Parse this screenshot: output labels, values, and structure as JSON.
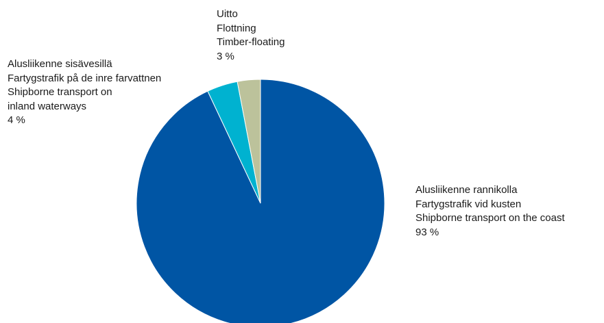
{
  "chart_data": {
    "type": "pie",
    "title": "",
    "start_angle_deg": 0,
    "direction": "clockwise",
    "slices": [
      {
        "lines": [
          "Alusliikenne rannikolla",
          "Fartygstrafik vid kusten",
          "Shipborne transport on the coast"
        ],
        "value": 93,
        "value_label": "93 %",
        "color": "#0055a4"
      },
      {
        "lines": [
          "Alusliikenne sisävesillä",
          "Fartygstrafik på de inre farvattnen",
          "Shipborne transport on",
          "inland waterways"
        ],
        "value": 4,
        "value_label": "4 %",
        "color": "#00b2d0"
      },
      {
        "lines": [
          "Uitto",
          "Flottning",
          "Timber-floating"
        ],
        "value": 3,
        "value_label": "3 %",
        "color": "#bcc29b"
      }
    ]
  }
}
